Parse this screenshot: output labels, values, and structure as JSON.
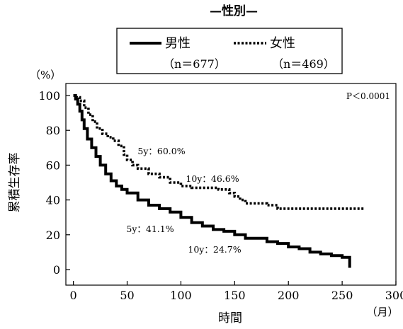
{
  "chart_data": {
    "type": "line",
    "title": "—性別—",
    "xlabel": "時間",
    "xunit": "（月）",
    "ylabel": "累積生存率",
    "yunit": "（%）",
    "xlim": [
      -7,
      300
    ],
    "ylim": [
      0,
      100
    ],
    "xticks": [
      0,
      50,
      100,
      150,
      200,
      250,
      300
    ],
    "yticks": [
      0,
      20,
      40,
      60,
      80,
      100
    ],
    "grid": false,
    "legend_position": "top",
    "pvalue": "P＜0.0001",
    "series": [
      {
        "name": "男性",
        "sub": "（n＝677）",
        "style": "solid",
        "points": [
          [
            0,
            100
          ],
          [
            2,
            98
          ],
          [
            4,
            95
          ],
          [
            6,
            91
          ],
          [
            8,
            86
          ],
          [
            10,
            81
          ],
          [
            13,
            75
          ],
          [
            17,
            70
          ],
          [
            21,
            65
          ],
          [
            25,
            60
          ],
          [
            30,
            55
          ],
          [
            35,
            51
          ],
          [
            40,
            48
          ],
          [
            45,
            46
          ],
          [
            50,
            44
          ],
          [
            60,
            40
          ],
          [
            70,
            37
          ],
          [
            80,
            35
          ],
          [
            90,
            33
          ],
          [
            100,
            30
          ],
          [
            110,
            27
          ],
          [
            120,
            25
          ],
          [
            130,
            23
          ],
          [
            140,
            22
          ],
          [
            150,
            20
          ],
          [
            160,
            18
          ],
          [
            175,
            18
          ],
          [
            180,
            16
          ],
          [
            190,
            15
          ],
          [
            200,
            13
          ],
          [
            210,
            12
          ],
          [
            220,
            10
          ],
          [
            230,
            9
          ],
          [
            240,
            8
          ],
          [
            250,
            7
          ],
          [
            257,
            7
          ],
          [
            257,
            1
          ]
        ]
      },
      {
        "name": "女性",
        "sub": "（n＝469）",
        "style": "dotted",
        "points": [
          [
            0,
            100
          ],
          [
            3,
            99
          ],
          [
            6,
            97
          ],
          [
            10,
            93
          ],
          [
            14,
            89
          ],
          [
            18,
            85
          ],
          [
            22,
            81
          ],
          [
            27,
            78
          ],
          [
            32,
            76
          ],
          [
            37,
            74
          ],
          [
            42,
            71
          ],
          [
            47,
            66
          ],
          [
            50,
            63
          ],
          [
            55,
            60
          ],
          [
            60,
            58
          ],
          [
            70,
            55
          ],
          [
            80,
            53
          ],
          [
            90,
            50
          ],
          [
            100,
            48
          ],
          [
            110,
            47
          ],
          [
            130,
            47
          ],
          [
            135,
            46
          ],
          [
            145,
            44
          ],
          [
            150,
            42
          ],
          [
            155,
            40
          ],
          [
            160,
            38
          ],
          [
            170,
            38
          ],
          [
            180,
            37
          ],
          [
            190,
            35
          ],
          [
            200,
            35
          ],
          [
            270,
            35
          ]
        ]
      }
    ],
    "annotations": [
      {
        "text": "5y：60.0%",
        "x": 60,
        "y": 60
      },
      {
        "text": "10y：46.6%",
        "x": 120,
        "y": 46.6
      },
      {
        "text": "5y：41.1%",
        "x": 60,
        "y": 41.1
      },
      {
        "text": "10y：24.7%",
        "x": 120,
        "y": 24.7
      }
    ]
  }
}
